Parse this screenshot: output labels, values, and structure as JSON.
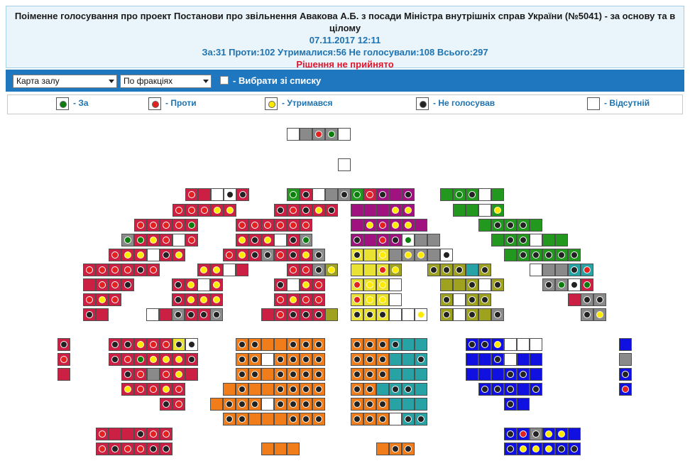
{
  "header": {
    "title": "Поіменне голосування про проект Постанови про звільнення Авакова А.Б. з посади Міністра внутрішніх справ України (№5041) - за основу та в цілому",
    "datetime": "07.11.2017 12:11",
    "summary": "За:31 Проти:102 Утрималися:56 Не голосували:108 Всього:297",
    "decision": "Рішення не прийнято"
  },
  "toolbar": {
    "view_select": "Карта залу",
    "group_select": "По фракціях",
    "choose_from_list": "- Вибрати зі списку"
  },
  "legend": [
    {
      "label": "- За",
      "dot": "#0a7d0a"
    },
    {
      "label": "- Проти",
      "dot": "#e3211f"
    },
    {
      "label": "- Утримався",
      "dot": "#ffeb00"
    },
    {
      "label": "- Не голосував",
      "dot": "#222222"
    },
    {
      "label": "- Відсутній",
      "dot": ""
    }
  ],
  "colors": {
    "crimson": "#cc1f44",
    "purple": "#a0127f",
    "green": "#23981f",
    "yellow": "#e9e233",
    "olive": "#9fa21e",
    "gray": "#8a8a8a",
    "orange": "#f07c1a",
    "teal": "#27a3a6",
    "blue": "#1010e0",
    "white": "#ffffff"
  },
  "hall": {
    "seat_codes": "fill letter: c=crimson p=purple n=green y=yellow o=olive g=gray O=orange t=teal b=blue w=white; vote letter: g=За r=Проти y=Утримався k=Не голосував -=none",
    "rows": [
      [
        [
          "w-",
          "g-",
          "gr",
          "gg",
          "w-"
        ]
      ],
      [
        [
          "w-"
        ]
      ],
      [
        [
          "cr",
          "c-",
          "w-",
          "wk",
          "ck"
        ],
        [
          "ng",
          "ck",
          "w-",
          "g-",
          "gk"
        ],
        [
          "ng",
          "cr",
          "pk",
          "p-",
          "pk"
        ],
        [
          "n-",
          "ng",
          "nk",
          "w-",
          "n-"
        ]
      ],
      [
        [
          "cr",
          "cr",
          "cr",
          "cy",
          "cy"
        ],
        [
          "ck",
          "cr",
          "ck",
          "cy",
          "ck"
        ],
        [
          "p-",
          "p-",
          "p-",
          "py",
          "py"
        ],
        [
          "n-",
          "n-",
          "w-",
          "ny"
        ]
      ],
      [
        [
          "cr",
          "cr",
          "cr",
          "cr",
          "cg"
        ],
        [
          "cr",
          "cr",
          "cr",
          "cr",
          "cr",
          "cr"
        ],
        [
          "p-",
          "py",
          "pr",
          "py",
          "py",
          "p-"
        ],
        [
          "n-",
          "nk",
          "nk",
          "nk",
          "n-"
        ]
      ],
      [
        [
          "gg",
          "cg",
          "cy",
          "cr",
          "w-",
          "cr"
        ],
        [
          "cy",
          "ck",
          "cy",
          "w-",
          "ck",
          "gg"
        ],
        [
          "pk",
          "p-",
          "pr",
          "pk",
          "wg",
          "g-",
          "g-"
        ],
        [
          "n-",
          "nk",
          "nk",
          "w-",
          "n-",
          "n-"
        ]
      ],
      [
        [
          "cr",
          "cy",
          "cy",
          "w-",
          "ck",
          "cy"
        ],
        [
          "cr",
          "cy",
          "ck",
          "gk",
          "cr",
          "ck",
          "cy",
          "gk"
        ],
        [
          "yk",
          "y-",
          "yy",
          "g-",
          "gy",
          "gy",
          "g-",
          "wk"
        ],
        [
          "n-",
          "nk",
          "nk",
          "nk",
          "nk",
          "nk"
        ]
      ],
      [
        [
          "cr",
          "cr",
          "cr",
          "cr",
          "ck",
          "cr"
        ],
        [
          "cy",
          "cy",
          "w-",
          "c-"
        ],
        [
          "cr",
          "cr",
          "gk",
          "oy"
        ],
        [
          "y-",
          "y-",
          "yr",
          "oy"
        ],
        [
          "ok",
          "ok",
          "ok",
          "t-",
          "ok"
        ],
        [
          "w-",
          "g-",
          "g-",
          "tk",
          "tr"
        ]
      ],
      [
        [
          "c-",
          "cr",
          "cr",
          "ck"
        ],
        [
          "ck",
          "cy",
          "w-",
          "cy"
        ],
        [
          "ck",
          "w-",
          "cy",
          "cr"
        ],
        [
          "yr",
          "yy",
          "yy",
          "w-"
        ],
        [
          "o-",
          "o-",
          "ok",
          "w-",
          "ok"
        ],
        [
          "gk",
          "gg",
          "wk",
          "cg"
        ]
      ],
      [
        [
          "cr",
          "cy",
          "cr"
        ],
        [
          "ck",
          "cy",
          "cy",
          "cy"
        ],
        [
          "cr",
          "cy",
          "cr",
          "cr"
        ],
        [
          "yr",
          "yy",
          "yy",
          "w-"
        ],
        [
          "ok",
          "w-",
          "ok",
          "ok"
        ],
        [
          "c-",
          "gk",
          "gk"
        ]
      ],
      [
        [
          "ck",
          "c-"
        ],
        [
          "w-",
          "c-",
          "gk",
          "ck",
          "ck",
          "gk"
        ],
        [
          "c-",
          "cr",
          "ck",
          "ck",
          "ck",
          "o-"
        ],
        [
          "yk",
          "yk",
          "yk",
          "w-",
          "w-",
          "wy"
        ],
        [
          "ok",
          "w-",
          "ok",
          "o-",
          "gk"
        ],
        [
          "gk",
          "gy"
        ]
      ],
      [
        [
          "ck"
        ],
        [
          "ck",
          "ck",
          "cy",
          "cr",
          "cr",
          "yk",
          "wk"
        ],
        [
          "Ok",
          "Ok",
          "O-",
          "O-",
          "Ok",
          "Ok",
          "Ok"
        ],
        [
          "Ok",
          "Ok",
          "Ok",
          "tk",
          "t-",
          "t-"
        ],
        [
          "bk",
          "bk",
          "by",
          "w-",
          "w-",
          "w-"
        ],
        [
          "b-"
        ]
      ],
      [
        [
          "cr"
        ],
        [
          "ck",
          "cr",
          "cg",
          "cy",
          "cy",
          "cy",
          "ck"
        ],
        [
          "Ok",
          "Ok",
          "w-",
          "Ok",
          "Ok",
          "Ok",
          "Ok"
        ],
        [
          "Ok",
          "Ok",
          "Ok",
          "t-",
          "t-",
          "tk"
        ],
        [
          "b-",
          "b-",
          "bk",
          "w-",
          "b-",
          "b-"
        ],
        [
          "g-"
        ]
      ],
      [
        [
          "c-"
        ],
        [
          "ck",
          "cr",
          "g-",
          "cr",
          "cy",
          "c-"
        ],
        [
          "Ok",
          "Ok",
          "O-",
          "Ok",
          "Ok",
          "Ok",
          "Ok"
        ],
        [
          "Ok",
          "Ok",
          "Ok",
          "t-",
          "t-",
          "t-"
        ],
        [
          "b-",
          "b-",
          "b-",
          "bk",
          "bk",
          "b-"
        ],
        [
          "bk"
        ]
      ],
      [
        [
          "cy",
          "cr",
          "cr",
          "cy",
          "cr"
        ],
        [
          "O-",
          "Ok",
          "O-",
          "O-",
          "Ok",
          "Ok",
          "Ok",
          "Ok"
        ],
        [
          "Ok",
          "Ok",
          "t-",
          "tk",
          "tk",
          "t-"
        ],
        [
          "bk",
          "bk",
          "bk",
          "b-",
          "bk"
        ],
        [
          "br"
        ]
      ],
      [
        [
          "ck",
          "cr"
        ],
        [
          "O-",
          "Ok",
          "Ok",
          "Ok",
          "w-",
          "Ok",
          "Ok",
          "Ok",
          "Ok"
        ],
        [
          "Ok",
          "Ok",
          "Ok",
          "t-",
          "t-",
          "t-"
        ],
        [
          "bk",
          "b-"
        ]
      ],
      [
        [
          "Ok",
          "Ok",
          "O-",
          "O-",
          "O-",
          "Ok",
          "Ok",
          "Ok"
        ],
        [
          "Ok",
          "Ok",
          "Ok",
          "w-",
          "tk",
          "tk"
        ]
      ],
      [
        [
          "cr",
          "c-",
          "c-",
          "ck",
          "cr",
          "cr"
        ],
        [
          "bk",
          "br",
          "gk",
          "by",
          "by",
          "b-"
        ]
      ],
      [
        [
          "cr",
          "ck",
          "cr",
          "cr",
          "ck",
          "ck"
        ],
        [
          "O-",
          "O-",
          "O-"
        ],
        [
          "O-",
          "Ok",
          "Ok"
        ],
        [
          "bk",
          "by",
          "by",
          "by",
          "bk",
          "bk"
        ]
      ]
    ]
  }
}
